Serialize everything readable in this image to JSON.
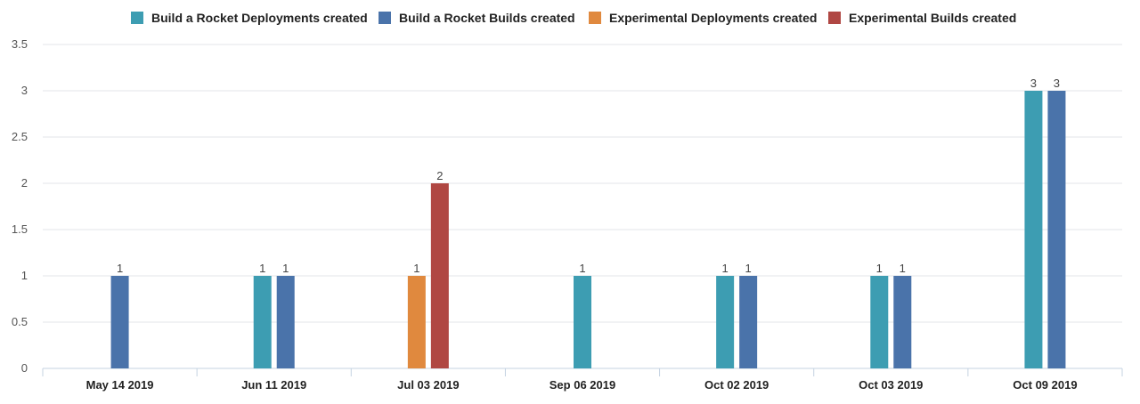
{
  "chart_data": {
    "type": "bar",
    "categories": [
      "May 14 2019",
      "Jun 11 2019",
      "Jul 03 2019",
      "Sep 06 2019",
      "Oct 02 2019",
      "Oct 03 2019",
      "Oct 09 2019"
    ],
    "series": [
      {
        "name": "Build a Rocket Deployments created",
        "color": "#3d9db2",
        "values": [
          0,
          1,
          0,
          1,
          1,
          1,
          3
        ]
      },
      {
        "name": "Build a Rocket Builds created",
        "color": "#4a73aa",
        "values": [
          1,
          1,
          0,
          0,
          1,
          1,
          3
        ]
      },
      {
        "name": "Experimental Deployments created",
        "color": "#e0893e",
        "values": [
          0,
          0,
          1,
          0,
          0,
          0,
          0
        ]
      },
      {
        "name": "Experimental Builds created",
        "color": "#b04743",
        "values": [
          0,
          0,
          2,
          0,
          0,
          0,
          0
        ]
      }
    ],
    "title": "",
    "xlabel": "",
    "ylabel": "",
    "ylim": [
      0,
      3.5
    ],
    "yticks": [
      "0",
      "0.5",
      "1",
      "1.5",
      "2",
      "2.5",
      "3",
      "3.5"
    ],
    "grid": true,
    "legend_position": "top",
    "data_labels": true
  }
}
